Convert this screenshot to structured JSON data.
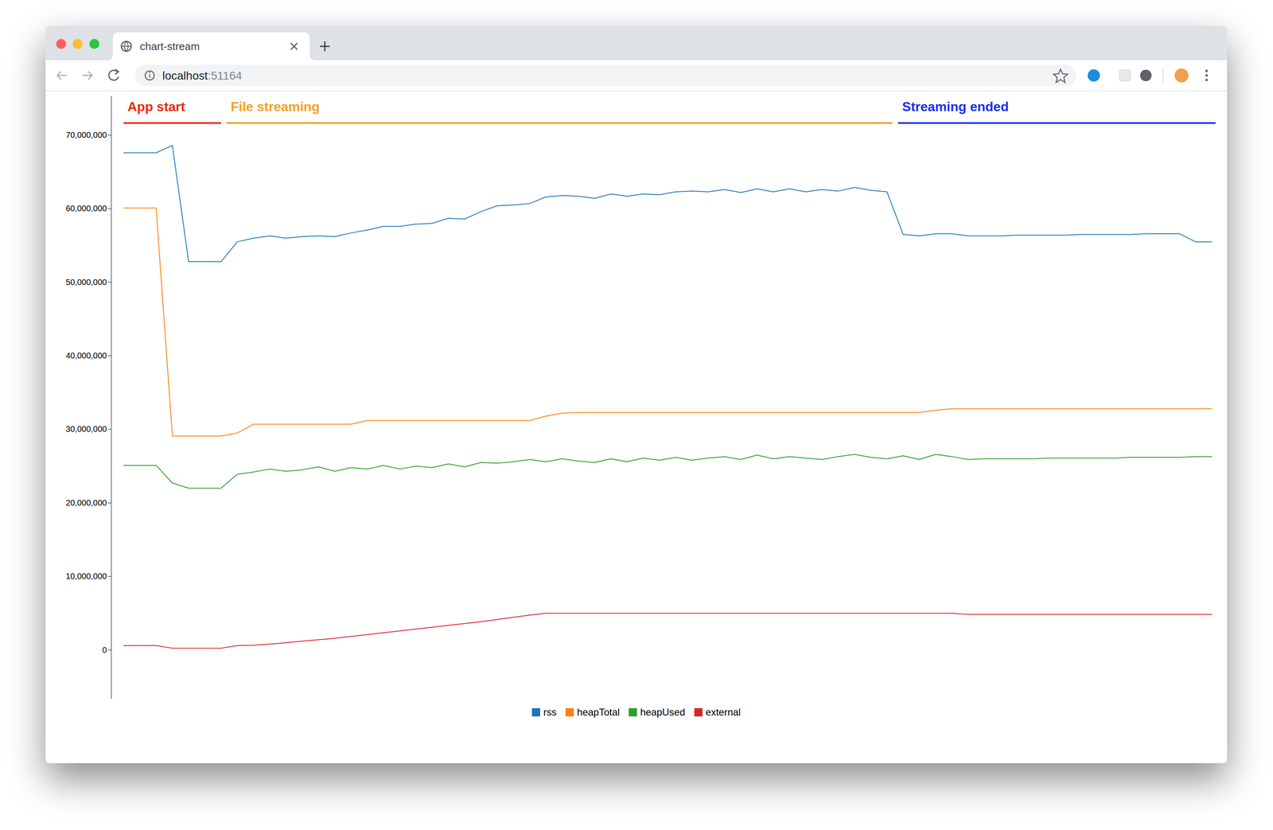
{
  "browser": {
    "tab_title": "chart-stream",
    "url": "localhost:51164"
  },
  "chart_data": {
    "type": "line",
    "x": [
      0,
      1,
      2,
      3,
      4,
      5,
      6,
      7,
      8,
      9,
      10,
      11,
      12,
      13,
      14,
      15,
      16,
      17,
      18,
      19,
      20,
      21,
      22,
      23,
      24,
      25,
      26,
      27,
      28,
      29,
      30,
      31,
      32,
      33,
      34,
      35,
      36,
      37,
      38,
      39,
      40,
      41,
      42,
      43,
      44,
      45,
      46,
      47,
      48,
      49,
      50,
      51,
      52,
      53,
      54,
      55,
      56,
      57,
      58,
      59,
      60,
      61,
      62,
      63,
      64,
      65,
      66,
      67
    ],
    "xlim": [
      0,
      67.25
    ],
    "ylim": [
      -6600000,
      75300000
    ],
    "yticks": [
      0,
      {
        "value": 10000000,
        "label": "10,000,000"
      },
      {
        "value": 20000000,
        "label": "20,000,000"
      },
      {
        "value": 30000000,
        "label": "30,000,000"
      },
      {
        "value": 40000000,
        "label": "40,000,000"
      },
      {
        "value": 50000000,
        "label": "50,000,000"
      },
      {
        "value": 60000000,
        "label": "60,000,000"
      },
      {
        "value": 70000000,
        "label": "70,000,000"
      }
    ],
    "tick_labels": "y",
    "legend": "bottom",
    "series": [
      {
        "name": "rss",
        "color": "#1f77b4",
        "values": [
          67600000,
          67600000,
          67600000,
          68600000,
          52800000,
          52800000,
          52800000,
          55500000,
          56000000,
          56300000,
          56000000,
          56200000,
          56300000,
          56200000,
          56700000,
          57100000,
          57600000,
          57600000,
          57900000,
          58000000,
          58700000,
          58600000,
          59600000,
          60400000,
          60500000,
          60700000,
          61600000,
          61800000,
          61700000,
          61400000,
          62000000,
          61700000,
          62000000,
          61900000,
          62300000,
          62400000,
          62300000,
          62600000,
          62200000,
          62700000,
          62300000,
          62700000,
          62300000,
          62600000,
          62400000,
          62900000,
          62500000,
          62300000,
          56500000,
          56300000,
          56600000,
          56600000,
          56300000,
          56300000,
          56300000,
          56400000,
          56400000,
          56400000,
          56400000,
          56500000,
          56500000,
          56500000,
          56500000,
          56600000,
          56600000,
          56600000,
          55500000,
          55500000
        ]
      },
      {
        "name": "heapTotal",
        "color": "#ff7f0e",
        "values": [
          60100000,
          60100000,
          60100000,
          29100000,
          29100000,
          29100000,
          29100000,
          29500000,
          30700000,
          30700000,
          30700000,
          30700000,
          30700000,
          30700000,
          30700000,
          31200000,
          31200000,
          31200000,
          31200000,
          31200000,
          31200000,
          31200000,
          31200000,
          31200000,
          31200000,
          31200000,
          31800000,
          32200000,
          32300000,
          32300000,
          32300000,
          32300000,
          32300000,
          32300000,
          32300000,
          32300000,
          32300000,
          32300000,
          32300000,
          32300000,
          32300000,
          32300000,
          32300000,
          32300000,
          32300000,
          32300000,
          32300000,
          32300000,
          32300000,
          32300000,
          32600000,
          32800000,
          32800000,
          32800000,
          32800000,
          32800000,
          32800000,
          32800000,
          32800000,
          32800000,
          32800000,
          32800000,
          32800000,
          32800000,
          32800000,
          32800000,
          32800000,
          32800000
        ]
      },
      {
        "name": "heapUsed",
        "color": "#2ca02c",
        "values": [
          25100000,
          25100000,
          25100000,
          22700000,
          22000000,
          22000000,
          22000000,
          23900000,
          24200000,
          24600000,
          24300000,
          24500000,
          24900000,
          24300000,
          24800000,
          24600000,
          25100000,
          24600000,
          25000000,
          24800000,
          25300000,
          24900000,
          25500000,
          25400000,
          25600000,
          25900000,
          25600000,
          26000000,
          25700000,
          25500000,
          26000000,
          25600000,
          26100000,
          25800000,
          26200000,
          25800000,
          26100000,
          26300000,
          25900000,
          26500000,
          26000000,
          26300000,
          26100000,
          25900000,
          26300000,
          26600000,
          26200000,
          26000000,
          26400000,
          25900000,
          26600000,
          26300000,
          25900000,
          26000000,
          26000000,
          26000000,
          26000000,
          26100000,
          26100000,
          26100000,
          26100000,
          26100000,
          26200000,
          26200000,
          26200000,
          26200000,
          26300000,
          26300000
        ]
      },
      {
        "name": "external",
        "color": "#d62728",
        "values": [
          600000,
          600000,
          600000,
          250000,
          250000,
          250000,
          250000,
          600000,
          650000,
          800000,
          1000000,
          1200000,
          1400000,
          1600000,
          1850000,
          2100000,
          2350000,
          2600000,
          2850000,
          3100000,
          3350000,
          3600000,
          3850000,
          4150000,
          4450000,
          4750000,
          5000000,
          5000000,
          5000000,
          5000000,
          5000000,
          5000000,
          5000000,
          5000000,
          5000000,
          5000000,
          5000000,
          5000000,
          5000000,
          5000000,
          5000000,
          5000000,
          5000000,
          5000000,
          5000000,
          5000000,
          5000000,
          5000000,
          5000000,
          5000000,
          5000000,
          5000000,
          4850000,
          4850000,
          4850000,
          4850000,
          4850000,
          4850000,
          4850000,
          4850000,
          4850000,
          4850000,
          4850000,
          4850000,
          4850000,
          4850000,
          4850000,
          4850000
        ]
      }
    ],
    "annotations": [
      {
        "text": "App start",
        "color": "#f0270c",
        "x": [
          0,
          6
        ]
      },
      {
        "text": "File streaming",
        "color": "#f5a021",
        "x": [
          6.35,
          47.35
        ]
      },
      {
        "text": "Streaming ended",
        "color": "#1030f0",
        "x": [
          47.7,
          67.25
        ]
      }
    ]
  }
}
